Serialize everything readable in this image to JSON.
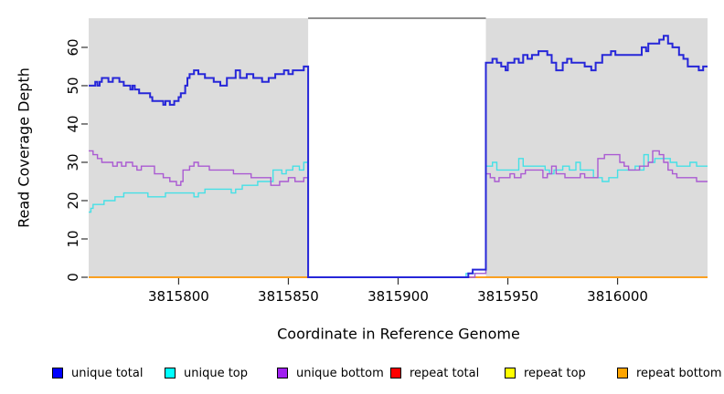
{
  "chart_data": {
    "type": "line",
    "subtype": "step",
    "title": "",
    "xlabel": "Coordinate in Reference Genome",
    "ylabel": "Read Coverage Depth",
    "x_domain": [
      3815759,
      3816041
    ],
    "y_domain": [
      0,
      67.6
    ],
    "grid": "off",
    "legend_position": "bottom",
    "plot_bg_color": "#ffffff",
    "region_color": "#dcdcdc",
    "box_color": "#4d4d4d",
    "tick_color": "#333333",
    "x_ticks": [
      {
        "value": 3815800,
        "label": "3815800"
      },
      {
        "value": 3815850,
        "label": "3815850"
      },
      {
        "value": 3815900,
        "label": "3815900"
      },
      {
        "value": 3815950,
        "label": "3815950"
      },
      {
        "value": 3816000,
        "label": "3816000"
      }
    ],
    "y_ticks": [
      {
        "value": 0,
        "label": "0"
      },
      {
        "value": 10,
        "label": "10"
      },
      {
        "value": 20,
        "label": "20"
      },
      {
        "value": 30,
        "label": "30"
      },
      {
        "value": 40,
        "label": "40"
      },
      {
        "value": 50,
        "label": "50"
      },
      {
        "value": 60,
        "label": "60"
      }
    ],
    "background_regions": [
      {
        "x0": 3815759,
        "x1": 3815859
      },
      {
        "x0": 3815940,
        "x1": 3816041
      }
    ],
    "gap_region": {
      "x0": 3815859,
      "x1": 3815940
    },
    "legend": [
      {
        "label": "unique total",
        "color": "#0000ff"
      },
      {
        "label": "unique top",
        "color": "#00ffff"
      },
      {
        "label": "unique bottom",
        "color": "#a020f0"
      },
      {
        "label": "repeat total",
        "color": "#ff0000"
      },
      {
        "label": "repeat top",
        "color": "#ffff00"
      },
      {
        "label": "repeat bottom",
        "color": "#ffa500"
      }
    ],
    "series": [
      {
        "name": "repeat total",
        "color": "#e00000",
        "stroke_width": 1.3,
        "points": [
          [
            3815759,
            0
          ]
        ]
      },
      {
        "name": "repeat top",
        "color": "#f0f000",
        "stroke_width": 1.3,
        "points": [
          [
            3815759,
            0
          ]
        ]
      },
      {
        "name": "repeat bottom",
        "color": "#ff9500",
        "stroke_width": 1.6,
        "points": [
          [
            3815759,
            0
          ]
        ]
      },
      {
        "name": "unique top",
        "color": "#45e0e6",
        "stroke_width": 1.4,
        "points": [
          [
            3815759,
            17
          ],
          [
            3815760,
            18
          ],
          [
            3815761,
            19
          ],
          [
            3815764,
            19
          ],
          [
            3815766,
            20
          ],
          [
            3815771,
            21
          ],
          [
            3815775,
            22
          ],
          [
            3815781,
            22
          ],
          [
            3815786,
            21
          ],
          [
            3815790,
            21
          ],
          [
            3815794,
            22
          ],
          [
            3815799,
            22
          ],
          [
            3815804,
            22
          ],
          [
            3815807,
            21
          ],
          [
            3815809,
            22
          ],
          [
            3815812,
            23
          ],
          [
            3815820,
            23
          ],
          [
            3815824,
            22
          ],
          [
            3815826,
            23
          ],
          [
            3815829,
            24
          ],
          [
            3815833,
            24
          ],
          [
            3815836,
            25
          ],
          [
            3815843,
            28
          ],
          [
            3815847,
            27
          ],
          [
            3815849,
            28
          ],
          [
            3815852,
            29
          ],
          [
            3815855,
            28
          ],
          [
            3815857,
            30
          ],
          [
            3815859,
            0
          ],
          [
            3815931,
            1
          ],
          [
            3815940,
            29
          ],
          [
            3815943,
            30
          ],
          [
            3815945,
            28
          ],
          [
            3815953,
            28
          ],
          [
            3815955,
            31
          ],
          [
            3815957,
            29
          ],
          [
            3815965,
            29
          ],
          [
            3815967,
            28
          ],
          [
            3815969,
            27
          ],
          [
            3815971,
            28
          ],
          [
            3815975,
            29
          ],
          [
            3815978,
            28
          ],
          [
            3815981,
            30
          ],
          [
            3815983,
            28
          ],
          [
            3815989,
            26
          ],
          [
            3815993,
            25
          ],
          [
            3815996,
            26
          ],
          [
            3816000,
            28
          ],
          [
            3816004,
            28
          ],
          [
            3816008,
            29
          ],
          [
            3816010,
            28
          ],
          [
            3816012,
            32
          ],
          [
            3816014,
            30
          ],
          [
            3816017,
            31
          ],
          [
            3816021,
            31
          ],
          [
            3816024,
            30
          ],
          [
            3816027,
            29
          ],
          [
            3816033,
            30
          ],
          [
            3816036,
            29
          ]
        ]
      },
      {
        "name": "unique bottom",
        "color": "#aa5ad2",
        "stroke_width": 1.4,
        "points": [
          [
            3815759,
            33
          ],
          [
            3815761,
            32
          ],
          [
            3815763,
            31
          ],
          [
            3815765,
            30
          ],
          [
            3815767,
            30
          ],
          [
            3815770,
            29
          ],
          [
            3815772,
            30
          ],
          [
            3815774,
            29
          ],
          [
            3815776,
            30
          ],
          [
            3815779,
            29
          ],
          [
            3815781,
            28
          ],
          [
            3815783,
            29
          ],
          [
            3815789,
            27
          ],
          [
            3815793,
            26
          ],
          [
            3815796,
            25
          ],
          [
            3815799,
            24
          ],
          [
            3815801,
            25
          ],
          [
            3815802,
            28
          ],
          [
            3815805,
            29
          ],
          [
            3815807,
            30
          ],
          [
            3815809,
            29
          ],
          [
            3815814,
            28
          ],
          [
            3815822,
            28
          ],
          [
            3815825,
            27
          ],
          [
            3815829,
            27
          ],
          [
            3815833,
            26
          ],
          [
            3815838,
            26
          ],
          [
            3815842,
            24
          ],
          [
            3815846,
            25
          ],
          [
            3815850,
            26
          ],
          [
            3815853,
            25
          ],
          [
            3815857,
            26
          ],
          [
            3815859,
            0
          ],
          [
            3815935,
            1
          ],
          [
            3815940,
            27
          ],
          [
            3815942,
            26
          ],
          [
            3815944,
            25
          ],
          [
            3815946,
            26
          ],
          [
            3815951,
            27
          ],
          [
            3815953,
            26
          ],
          [
            3815956,
            27
          ],
          [
            3815958,
            28
          ],
          [
            3815964,
            28
          ],
          [
            3815966,
            26
          ],
          [
            3815968,
            27
          ],
          [
            3815970,
            29
          ],
          [
            3815972,
            27
          ],
          [
            3815976,
            26
          ],
          [
            3815983,
            27
          ],
          [
            3815985,
            26
          ],
          [
            3815991,
            31
          ],
          [
            3815994,
            32
          ],
          [
            3815999,
            32
          ],
          [
            3816001,
            30
          ],
          [
            3816003,
            29
          ],
          [
            3816005,
            28
          ],
          [
            3816010,
            29
          ],
          [
            3816014,
            30
          ],
          [
            3816016,
            33
          ],
          [
            3816019,
            32
          ],
          [
            3816021,
            30
          ],
          [
            3816023,
            28
          ],
          [
            3816025,
            27
          ],
          [
            3816027,
            26
          ],
          [
            3816034,
            26
          ],
          [
            3816036,
            25
          ]
        ]
      },
      {
        "name": "unique total",
        "color": "#2626d8",
        "stroke_width": 2,
        "points": [
          [
            3815759,
            50
          ],
          [
            3815762,
            51
          ],
          [
            3815763,
            50
          ],
          [
            3815764,
            51
          ],
          [
            3815765,
            52
          ],
          [
            3815768,
            51
          ],
          [
            3815770,
            52
          ],
          [
            3815773,
            51
          ],
          [
            3815775,
            50
          ],
          [
            3815778,
            49
          ],
          [
            3815779,
            50
          ],
          [
            3815780,
            49
          ],
          [
            3815782,
            48
          ],
          [
            3815784,
            48
          ],
          [
            3815787,
            47
          ],
          [
            3815788,
            46
          ],
          [
            3815793,
            45
          ],
          [
            3815794,
            46
          ],
          [
            3815796,
            45
          ],
          [
            3815798,
            46
          ],
          [
            3815800,
            47
          ],
          [
            3815801,
            48
          ],
          [
            3815803,
            50
          ],
          [
            3815804,
            52
          ],
          [
            3815805,
            53
          ],
          [
            3815807,
            54
          ],
          [
            3815809,
            53
          ],
          [
            3815812,
            52
          ],
          [
            3815816,
            51
          ],
          [
            3815819,
            50
          ],
          [
            3815822,
            52
          ],
          [
            3815826,
            54
          ],
          [
            3815828,
            52
          ],
          [
            3815831,
            53
          ],
          [
            3815834,
            52
          ],
          [
            3815838,
            51
          ],
          [
            3815841,
            52
          ],
          [
            3815844,
            53
          ],
          [
            3815848,
            54
          ],
          [
            3815850,
            53
          ],
          [
            3815852,
            54
          ],
          [
            3815855,
            54
          ],
          [
            3815857,
            55
          ],
          [
            3815859,
            0
          ],
          [
            3815932,
            1
          ],
          [
            3815934,
            2
          ],
          [
            3815940,
            56
          ],
          [
            3815943,
            57
          ],
          [
            3815945,
            56
          ],
          [
            3815947,
            55
          ],
          [
            3815949,
            54
          ],
          [
            3815950,
            56
          ],
          [
            3815953,
            57
          ],
          [
            3815955,
            56
          ],
          [
            3815957,
            58
          ],
          [
            3815959,
            57
          ],
          [
            3815961,
            58
          ],
          [
            3815964,
            59
          ],
          [
            3815968,
            58
          ],
          [
            3815970,
            56
          ],
          [
            3815972,
            54
          ],
          [
            3815975,
            56
          ],
          [
            3815977,
            57
          ],
          [
            3815979,
            56
          ],
          [
            3815985,
            55
          ],
          [
            3815988,
            54
          ],
          [
            3815990,
            56
          ],
          [
            3815993,
            58
          ],
          [
            3815997,
            59
          ],
          [
            3815999,
            58
          ],
          [
            3816011,
            60
          ],
          [
            3816013,
            59
          ],
          [
            3816014,
            61
          ],
          [
            3816017,
            61
          ],
          [
            3816019,
            62
          ],
          [
            3816021,
            63
          ],
          [
            3816023,
            61
          ],
          [
            3816025,
            60
          ],
          [
            3816028,
            58
          ],
          [
            3816030,
            57
          ],
          [
            3816032,
            55
          ],
          [
            3816037,
            54
          ],
          [
            3816039,
            55
          ]
        ]
      }
    ]
  }
}
